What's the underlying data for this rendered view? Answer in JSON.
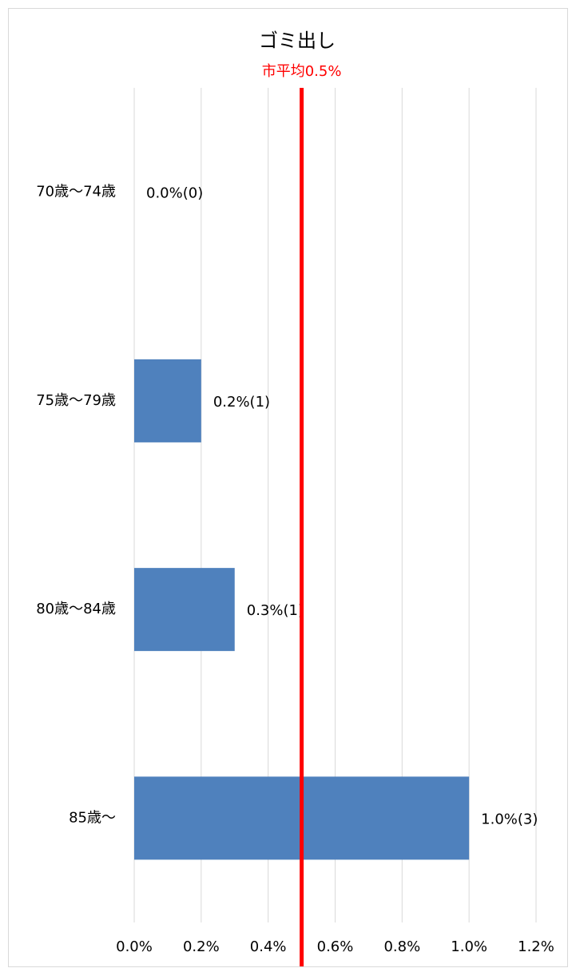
{
  "chart_data": {
    "type": "barh",
    "title": "ゴミ出し",
    "categories": [
      "70歳〜74歳",
      "75歳〜79歳",
      "80歳〜84歳",
      "85歳〜"
    ],
    "values": [
      0.0,
      0.2,
      0.3,
      1.0
    ],
    "value_labels": [
      "0.0%(0)",
      "0.2%(1)",
      "0.3%(1)",
      "1.0%(3)"
    ],
    "color": "#4f81bd",
    "xlim": [
      0,
      1.2
    ],
    "xticks": [
      {
        "value": 0,
        "label": "0.0%"
      },
      {
        "value": 0.2,
        "label": "0.2%"
      },
      {
        "value": 0.4,
        "label": "0.4%"
      },
      {
        "value": 0.6,
        "label": "0.6%"
      },
      {
        "value": 0.8,
        "label": "0.8%"
      },
      {
        "value": 1.0,
        "label": "1.0%"
      },
      {
        "value": 1.2,
        "label": "1.2%"
      }
    ],
    "grid": true,
    "reference_line": {
      "value": 0.5,
      "label": "市平均0.5%",
      "color": "#ff0000"
    }
  }
}
